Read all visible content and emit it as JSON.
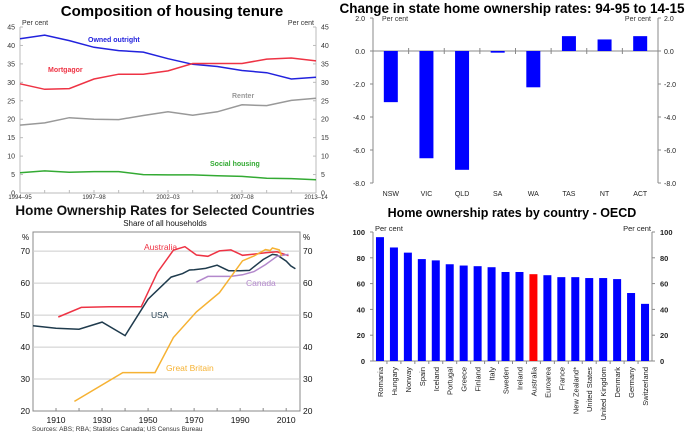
{
  "chart_data": [
    {
      "id": "tenure",
      "type": "line",
      "title": "Composition of housing tenure",
      "ylabel_left": "Per cent",
      "ylabel_right": "Per cent",
      "ylim": [
        0,
        45
      ],
      "yticks": [
        0,
        5,
        10,
        15,
        20,
        25,
        30,
        35,
        40,
        45
      ],
      "x": [
        "1994–95",
        "1995–96",
        "1996–97",
        "1997–98",
        "1999–00",
        "2000–01",
        "2002–03",
        "2003–04",
        "2005–06",
        "2007–08",
        "2009–10",
        "2011–12",
        "2013–14"
      ],
      "xtick_labels": [
        "1994–95",
        "1997–98",
        "2002–03",
        "2007–08",
        "2013–14"
      ],
      "xtick_index": [
        0,
        3,
        6,
        9,
        12
      ],
      "grid": false,
      "series": [
        {
          "name": "Owned outright",
          "color": "#2222dd",
          "values": [
            41.8,
            42.8,
            41.3,
            39.5,
            38.6,
            38.2,
            36.4,
            34.9,
            34.3,
            33.2,
            32.6,
            30.9,
            31.4
          ]
        },
        {
          "name": "Mortgagor",
          "color": "#ee3344",
          "values": [
            29.6,
            28.1,
            28.3,
            30.9,
            32.2,
            32.2,
            33.1,
            35.1,
            35.1,
            35.1,
            36.3,
            36.6,
            35.8
          ]
        },
        {
          "name": "Renter",
          "color": "#999999",
          "values": [
            18.4,
            19.0,
            20.4,
            20.0,
            19.9,
            21.0,
            22.0,
            21.1,
            22.0,
            23.9,
            23.7,
            25.1,
            25.7
          ]
        },
        {
          "name": "Social housing",
          "color": "#33aa33",
          "values": [
            5.5,
            6.0,
            5.6,
            5.8,
            5.8,
            5.0,
            4.9,
            4.9,
            4.7,
            4.5,
            4.0,
            3.9,
            3.6
          ]
        }
      ]
    },
    {
      "id": "state",
      "type": "bar",
      "title": "Change in state home ownership rates: 94-95 to 14-15",
      "ylabel_left": "Per cent",
      "ylabel_right": "Per cent",
      "ylim": [
        -8.0,
        2.0
      ],
      "yticks": [
        "2.0",
        "0.0",
        "-2.0",
        "-4.0",
        "-6.0",
        "-8.0"
      ],
      "categories": [
        "NSW",
        "VIC",
        "QLD",
        "SA",
        "WA",
        "TAS",
        "NT",
        "ACT"
      ],
      "values": [
        -3.1,
        -6.5,
        -7.2,
        -0.1,
        -2.2,
        0.9,
        0.7,
        0.9
      ],
      "color": "#0000ff",
      "grid": false
    },
    {
      "id": "countries",
      "type": "line",
      "title": "Home Ownership Rates for Selected Countries",
      "subtitle": "Share of all households",
      "ylabel_left": "%",
      "ylabel_right": "%",
      "ylim": [
        20,
        76
      ],
      "yticks": [
        20,
        30,
        40,
        50,
        60,
        70
      ],
      "xlim": [
        1900,
        2016
      ],
      "xticks": [
        1910,
        1930,
        1950,
        1970,
        1990,
        2010
      ],
      "grid": true,
      "source": "Sources:  ABS; RBA; Statistics Canada; US Census Bureau",
      "series": [
        {
          "name": "Australia",
          "color": "#ee3344",
          "points": [
            [
              1911,
              49.4
            ],
            [
              1921,
              52.4
            ],
            [
              1933,
              52.6
            ],
            [
              1947,
              52.6
            ],
            [
              1954,
              63.3
            ],
            [
              1961,
              70.3
            ],
            [
              1966,
              71.4
            ],
            [
              1971,
              68.8
            ],
            [
              1976,
              68.4
            ],
            [
              1981,
              70.1
            ],
            [
              1986,
              70.4
            ],
            [
              1991,
              68.7
            ],
            [
              1996,
              69.1
            ],
            [
              2001,
              69.5
            ],
            [
              2006,
              69.8
            ],
            [
              2011,
              68.6
            ]
          ]
        },
        {
          "name": "USA",
          "color": "#1f3b4d",
          "points": [
            [
              1900,
              46.7
            ],
            [
              1910,
              45.9
            ],
            [
              1920,
              45.6
            ],
            [
              1930,
              47.8
            ],
            [
              1940,
              43.6
            ],
            [
              1950,
              55.0
            ],
            [
              1960,
              61.9
            ],
            [
              1965,
              63.0
            ],
            [
              1968,
              64.1
            ],
            [
              1970,
              64.2
            ],
            [
              1975,
              64.6
            ],
            [
              1980,
              65.6
            ],
            [
              1985,
              63.9
            ],
            [
              1990,
              63.9
            ],
            [
              1994,
              64.0
            ],
            [
              1997,
              65.7
            ],
            [
              2000,
              67.4
            ],
            [
              2004,
              69.0
            ],
            [
              2006,
              68.8
            ],
            [
              2010,
              66.9
            ],
            [
              2012,
              65.4
            ],
            [
              2014,
              64.5
            ]
          ]
        },
        {
          "name": "Canada",
          "color": "#b388cc",
          "points": [
            [
              1971,
              60.3
            ],
            [
              1976,
              62.1
            ],
            [
              1981,
              62.1
            ],
            [
              1986,
              62.1
            ],
            [
              1991,
              62.6
            ],
            [
              1996,
              63.6
            ],
            [
              2001,
              65.8
            ],
            [
              2006,
              68.4
            ],
            [
              2011,
              69.0
            ]
          ]
        },
        {
          "name": "Great Britain",
          "color": "#f6b233",
          "points": [
            [
              1918,
              23.0
            ],
            [
              1939,
              32.0
            ],
            [
              1953,
              32.0
            ],
            [
              1961,
              43.0
            ],
            [
              1971,
              51.0
            ],
            [
              1981,
              57.0
            ],
            [
              1991,
              67.0
            ],
            [
              1996,
              68.5
            ],
            [
              2001,
              70.5
            ],
            [
              2003,
              70.2
            ],
            [
              2004,
              71.0
            ],
            [
              2007,
              70.4
            ],
            [
              2008,
              68.5
            ]
          ]
        }
      ],
      "labels": [
        {
          "text": "Australia",
          "series": "Australia"
        },
        {
          "text": "USA",
          "series": "USA"
        },
        {
          "text": "Canada",
          "series": "Canada"
        },
        {
          "text": "Great Britain",
          "series": "Great Britain"
        }
      ]
    },
    {
      "id": "oecd",
      "type": "bar",
      "title": "Home ownership rates by country - OECD",
      "ylabel_left": "Per cent",
      "ylabel_right": "Per cent",
      "ylim": [
        0,
        100
      ],
      "yticks": [
        0,
        20,
        40,
        60,
        80,
        100
      ],
      "categories": [
        "Romania",
        "Hungary",
        "Norway",
        "Spain",
        "Iceland",
        "Portugal",
        "Greece",
        "Finland",
        "Italy",
        "Sweden",
        "Ireland",
        "Australia",
        "Euroarea",
        "France",
        "New Zealand*",
        "United States",
        "United Kingdom",
        "Denmark",
        "Germany",
        "Switzerland"
      ],
      "values": [
        96,
        88,
        84,
        79,
        78,
        75,
        74,
        73.5,
        72.7,
        69,
        69,
        67.3,
        66.5,
        65,
        65,
        64.3,
        64.3,
        63.5,
        52.7,
        44.3
      ],
      "color": "#0000ff",
      "highlight": {
        "category": "Australia",
        "color": "#ff0000"
      },
      "grid": false
    }
  ]
}
